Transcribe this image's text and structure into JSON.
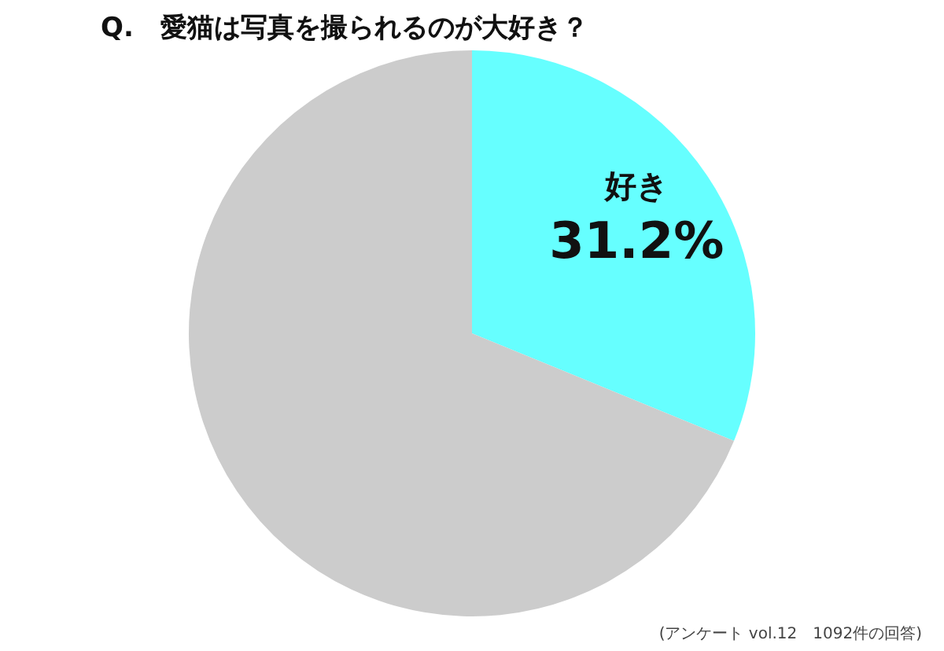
{
  "chart_data": {
    "type": "pie",
    "title": "Q.　愛猫は写真を撮られるのが大好き？",
    "categories": [
      "好き",
      null
    ],
    "values": [
      31.2,
      68.8
    ],
    "colors": [
      "#66ffff",
      "#cccccc"
    ],
    "value_labels": [
      "31.2%",
      null
    ],
    "legend": false,
    "annotations": [
      "(アンケート vol.12　1092件の回答)"
    ]
  }
}
